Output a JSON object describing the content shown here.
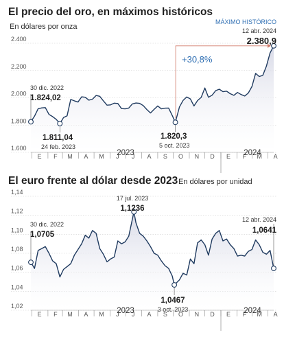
{
  "colors": {
    "line": "#1f3a5f",
    "fill_top": "#d9dbe8",
    "accent": "#2f6fb3",
    "text": "#1f1f1f"
  },
  "chart_data": [
    {
      "type": "area",
      "title": "El precio del oro, en máximos históricos",
      "subtitle": "En dólares por onza",
      "ylim": [
        1600,
        2400
      ],
      "yticks": [
        "1.600",
        "1.800",
        "2.000",
        "2.200",
        "2.400"
      ],
      "xlim": [
        "2022-12-30",
        "2024-04-12"
      ],
      "months": [
        "E",
        "F",
        "M",
        "A",
        "M",
        "J",
        "J",
        "A",
        "S",
        "O",
        "N",
        "D",
        "E",
        "F",
        "M",
        "A"
      ],
      "years": [
        "2023",
        "2024"
      ],
      "grid": "horizontal-dotted",
      "change_label": "+30,8%",
      "series": [
        {
          "x": [
            "2022-12-30",
            "2023-01-06",
            "2023-01-13",
            "2023-01-20",
            "2023-01-27",
            "2023-02-03",
            "2023-02-10",
            "2023-02-17",
            "2023-02-24",
            "2023-03-03",
            "2023-03-10",
            "2023-03-17",
            "2023-03-24",
            "2023-03-31",
            "2023-04-07",
            "2023-04-14",
            "2023-04-21",
            "2023-04-28",
            "2023-05-05",
            "2023-05-12",
            "2023-05-19",
            "2023-05-26",
            "2023-06-02",
            "2023-06-09",
            "2023-06-16",
            "2023-06-23",
            "2023-06-30",
            "2023-07-07",
            "2023-07-14",
            "2023-07-21",
            "2023-07-28",
            "2023-08-04",
            "2023-08-11",
            "2023-08-18",
            "2023-08-25",
            "2023-09-01",
            "2023-09-08",
            "2023-09-15",
            "2023-09-22",
            "2023-09-29",
            "2023-10-05",
            "2023-10-13",
            "2023-10-20",
            "2023-10-27",
            "2023-11-03",
            "2023-11-10",
            "2023-11-17",
            "2023-11-24",
            "2023-12-01",
            "2023-12-08",
            "2023-12-15",
            "2023-12-22",
            "2023-12-29",
            "2024-01-05",
            "2024-01-12",
            "2024-01-19",
            "2024-01-26",
            "2024-02-02",
            "2024-02-09",
            "2024-02-16",
            "2024-02-23",
            "2024-03-01",
            "2024-03-08",
            "2024-03-15",
            "2024-03-22",
            "2024-03-29",
            "2024-04-05",
            "2024-04-12"
          ],
          "y": [
            1824.02,
            1865,
            1920,
            1926,
            1928,
            1878,
            1862,
            1842,
            1811.04,
            1855,
            1868,
            1988,
            1978,
            1969,
            2007,
            2004,
            1983,
            1990,
            2017,
            2011,
            1978,
            1946,
            1948,
            1961,
            1958,
            1921,
            1919,
            1925,
            1955,
            1962,
            1959,
            1943,
            1914,
            1889,
            1915,
            1940,
            1919,
            1924,
            1925,
            1870,
            1820.3,
            1933,
            1981,
            2006,
            1992,
            1940,
            1980,
            2003,
            2072,
            2004,
            2019,
            2053,
            2063,
            2045,
            2049,
            2030,
            2018,
            2039,
            2024,
            2013,
            2035,
            2083,
            2179,
            2156,
            2165,
            2233,
            2329,
            2380.9
          ]
        }
      ],
      "annotations": [
        {
          "date": "30 dic. 2022",
          "value": "1.824,02"
        },
        {
          "date": "24 feb. 2023",
          "value": "1.811,04"
        },
        {
          "date": "5 oct. 2023",
          "value": "1.820,3"
        },
        {
          "date": "12 abr. 2024",
          "value": "2.380,9",
          "label": "MÁXIMO HISTÓRICO"
        }
      ]
    },
    {
      "type": "area",
      "title": "El euro frente al dólar desde 2023",
      "subtitle": "En dólares por unidad",
      "ylim": [
        1.02,
        1.14
      ],
      "yticks": [
        "1,02",
        "1,04",
        "1,06",
        "1,08",
        "1,10",
        "1,12",
        "1,14"
      ],
      "xlim": [
        "2022-12-30",
        "2024-04-12"
      ],
      "months": [
        "E",
        "F",
        "M",
        "A",
        "M",
        "J",
        "J",
        "A",
        "S",
        "O",
        "N",
        "D",
        "E",
        "F",
        "M",
        "A"
      ],
      "years": [
        "2023",
        "2024"
      ],
      "grid": "horizontal-dotted",
      "series": [
        {
          "x": [
            "2022-12-30",
            "2023-01-06",
            "2023-01-13",
            "2023-01-20",
            "2023-01-27",
            "2023-02-03",
            "2023-02-10",
            "2023-02-17",
            "2023-02-24",
            "2023-03-03",
            "2023-03-10",
            "2023-03-17",
            "2023-03-24",
            "2023-03-31",
            "2023-04-07",
            "2023-04-14",
            "2023-04-21",
            "2023-04-28",
            "2023-05-05",
            "2023-05-12",
            "2023-05-19",
            "2023-05-26",
            "2023-06-02",
            "2023-06-09",
            "2023-06-16",
            "2023-06-23",
            "2023-06-30",
            "2023-07-07",
            "2023-07-17",
            "2023-07-21",
            "2023-07-28",
            "2023-08-04",
            "2023-08-11",
            "2023-08-18",
            "2023-08-25",
            "2023-09-01",
            "2023-09-08",
            "2023-09-15",
            "2023-09-22",
            "2023-09-29",
            "2023-10-03",
            "2023-10-13",
            "2023-10-20",
            "2023-10-27",
            "2023-11-03",
            "2023-11-10",
            "2023-11-17",
            "2023-11-24",
            "2023-12-01",
            "2023-12-08",
            "2023-12-15",
            "2023-12-22",
            "2023-12-29",
            "2024-01-05",
            "2024-01-12",
            "2024-01-19",
            "2024-01-26",
            "2024-02-02",
            "2024-02-09",
            "2024-02-16",
            "2024-02-23",
            "2024-03-01",
            "2024-03-08",
            "2024-03-15",
            "2024-03-22",
            "2024-03-29",
            "2024-04-05",
            "2024-04-12"
          ],
          "y": [
            1.0705,
            1.064,
            1.083,
            1.085,
            1.087,
            1.08,
            1.072,
            1.069,
            1.055,
            1.063,
            1.066,
            1.069,
            1.078,
            1.084,
            1.09,
            1.099,
            1.096,
            1.104,
            1.101,
            1.085,
            1.079,
            1.071,
            1.074,
            1.076,
            1.093,
            1.09,
            1.092,
            1.098,
            1.1236,
            1.112,
            1.101,
            1.098,
            1.093,
            1.087,
            1.08,
            1.078,
            1.072,
            1.067,
            1.064,
            1.056,
            1.0467,
            1.052,
            1.059,
            1.057,
            1.074,
            1.069,
            1.091,
            1.094,
            1.089,
            1.078,
            1.095,
            1.101,
            1.104,
            1.093,
            1.095,
            1.089,
            1.085,
            1.077,
            1.078,
            1.077,
            1.082,
            1.084,
            1.094,
            1.089,
            1.081,
            1.079,
            1.083,
            1.0641
          ]
        }
      ],
      "annotations": [
        {
          "date": "30 dic. 2022",
          "value": "1,0705"
        },
        {
          "date": "17 jul. 2023",
          "value": "1,1236"
        },
        {
          "date": "3 oct. 2023",
          "value": "1,0467"
        },
        {
          "date": "12 abr. 2024",
          "value": "1,0641"
        }
      ]
    }
  ]
}
